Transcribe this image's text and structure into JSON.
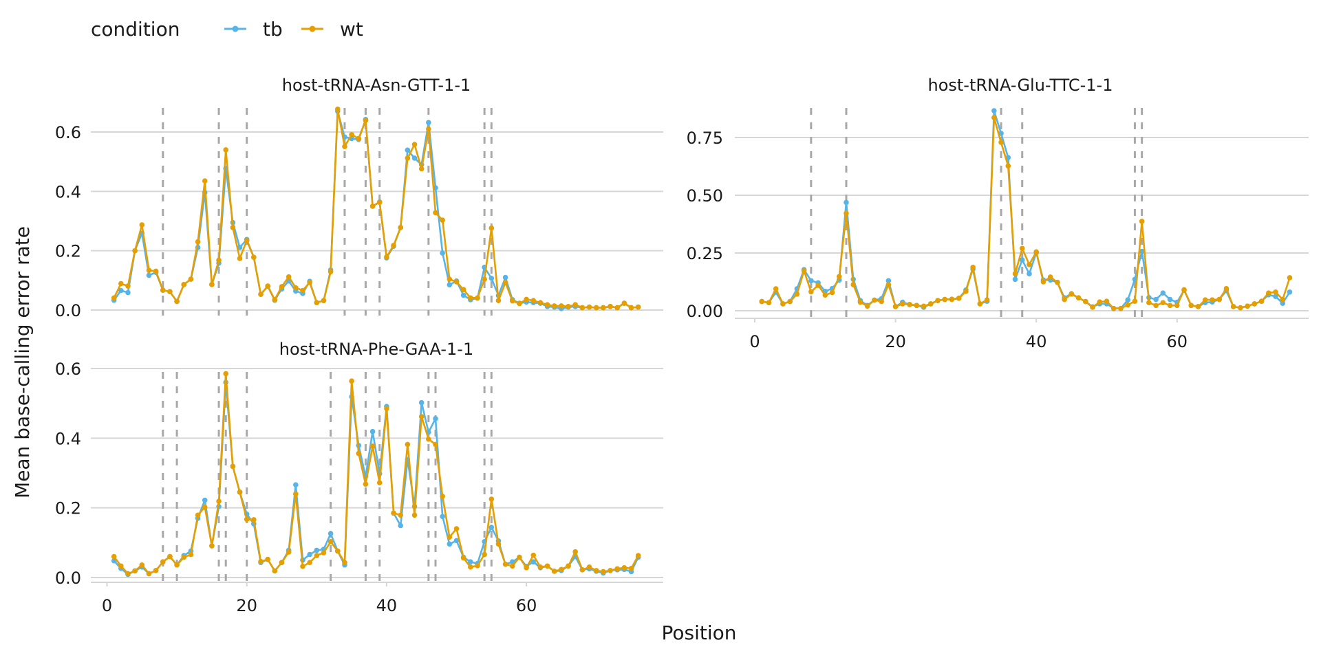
{
  "legend": {
    "title": "condition",
    "items": [
      {
        "label": "tb",
        "color": "#56B4E9"
      },
      {
        "label": "wt",
        "color": "#E69F00"
      }
    ]
  },
  "chart_data": {
    "type": "line",
    "xlabel": "Position",
    "ylabel": "Mean base-calling error rate",
    "legend_position": "top-left",
    "grid": "horizontal major",
    "x": [
      1,
      2,
      3,
      4,
      5,
      6,
      7,
      8,
      9,
      10,
      11,
      12,
      13,
      14,
      15,
      16,
      17,
      18,
      19,
      20,
      21,
      22,
      23,
      24,
      25,
      26,
      27,
      28,
      29,
      30,
      31,
      32,
      33,
      34,
      35,
      36,
      37,
      38,
      39,
      40,
      41,
      42,
      43,
      44,
      45,
      46,
      47,
      48,
      49,
      50,
      51,
      52,
      53,
      54,
      55,
      56,
      57,
      58,
      59,
      60,
      61,
      62,
      63,
      64,
      65,
      66,
      67,
      68,
      69,
      70,
      71,
      72,
      73,
      74,
      75,
      76
    ],
    "facets": [
      {
        "title": "host-tRNA-Asn-GTT-1-1",
        "yticks": [
          "0.0",
          "0.2",
          "0.4",
          "0.6"
        ],
        "ytick_values": [
          0,
          0.2,
          0.4,
          0.6
        ],
        "xticks": [],
        "vlines": [
          8,
          16,
          20,
          34,
          37,
          39,
          46,
          54,
          55
        ],
        "series": [
          {
            "name": "tb",
            "values": [
              0.033,
              0.066,
              0.059,
              0.2,
              0.259,
              0.117,
              0.127,
              0.067,
              0.062,
              0.029,
              0.086,
              0.104,
              0.211,
              0.396,
              0.086,
              0.158,
              0.477,
              0.295,
              0.211,
              0.238,
              0.178,
              0.053,
              0.08,
              0.033,
              0.071,
              0.098,
              0.064,
              0.056,
              0.097,
              0.025,
              0.032,
              0.135,
              0.67,
              0.583,
              0.578,
              0.575,
              0.642,
              0.35,
              0.364,
              0.176,
              0.215,
              0.278,
              0.539,
              0.512,
              0.49,
              0.632,
              0.412,
              0.192,
              0.085,
              0.098,
              0.05,
              0.035,
              0.04,
              0.144,
              0.107,
              0.049,
              0.11,
              0.035,
              0.023,
              0.027,
              0.025,
              0.023,
              0.012,
              0.01,
              0.005,
              0.01,
              0.012,
              0.008,
              0.01,
              0.008,
              0.008,
              0.012,
              0.008,
              0.023,
              0.008,
              0.01
            ]
          },
          {
            "name": "wt",
            "values": [
              0.041,
              0.089,
              0.081,
              0.2,
              0.287,
              0.134,
              0.131,
              0.067,
              0.062,
              0.029,
              0.086,
              0.104,
              0.23,
              0.435,
              0.086,
              0.168,
              0.54,
              0.278,
              0.174,
              0.234,
              0.178,
              0.053,
              0.081,
              0.035,
              0.079,
              0.112,
              0.075,
              0.066,
              0.093,
              0.025,
              0.032,
              0.129,
              0.677,
              0.551,
              0.591,
              0.578,
              0.639,
              0.35,
              0.363,
              0.179,
              0.218,
              0.278,
              0.512,
              0.558,
              0.476,
              0.61,
              0.328,
              0.303,
              0.104,
              0.095,
              0.069,
              0.041,
              0.041,
              0.104,
              0.276,
              0.032,
              0.093,
              0.031,
              0.022,
              0.036,
              0.032,
              0.025,
              0.018,
              0.014,
              0.014,
              0.012,
              0.018,
              0.008,
              0.01,
              0.008,
              0.008,
              0.012,
              0.008,
              0.023,
              0.008,
              0.01
            ]
          }
        ]
      },
      {
        "title": "host-tRNA-Glu-TTC-1-1",
        "yticks": [
          "0.00",
          "0.25",
          "0.50",
          "0.75"
        ],
        "ytick_values": [
          0,
          0.25,
          0.5,
          0.75
        ],
        "xticks": [
          "0",
          "20",
          "40",
          "60"
        ],
        "xtick_values": [
          0,
          20,
          40,
          60
        ],
        "vlines": [
          8,
          13,
          35,
          38,
          54,
          55
        ],
        "series": [
          {
            "name": "tb",
            "values": [
              0.04,
              0.035,
              0.08,
              0.03,
              0.04,
              0.095,
              0.178,
              0.13,
              0.121,
              0.084,
              0.096,
              0.133,
              0.469,
              0.136,
              0.044,
              0.023,
              0.046,
              0.052,
              0.13,
              0.018,
              0.037,
              0.027,
              0.023,
              0.015,
              0.03,
              0.044,
              0.049,
              0.05,
              0.054,
              0.09,
              0.18,
              0.03,
              0.041,
              0.866,
              0.768,
              0.663,
              0.136,
              0.22,
              0.16,
              0.252,
              0.133,
              0.133,
              0.123,
              0.056,
              0.074,
              0.056,
              0.04,
              0.017,
              0.03,
              0.03,
              0.01,
              0.01,
              0.047,
              0.136,
              0.257,
              0.057,
              0.049,
              0.077,
              0.049,
              0.037,
              0.089,
              0.023,
              0.018,
              0.035,
              0.038,
              0.049,
              0.087,
              0.018,
              0.013,
              0.02,
              0.03,
              0.041,
              0.069,
              0.062,
              0.032,
              0.081
            ]
          },
          {
            "name": "wt",
            "values": [
              0.04,
              0.035,
              0.095,
              0.03,
              0.04,
              0.072,
              0.173,
              0.082,
              0.11,
              0.068,
              0.079,
              0.148,
              0.422,
              0.113,
              0.037,
              0.02,
              0.046,
              0.04,
              0.113,
              0.018,
              0.03,
              0.027,
              0.023,
              0.02,
              0.03,
              0.044,
              0.049,
              0.049,
              0.054,
              0.084,
              0.188,
              0.03,
              0.047,
              0.836,
              0.729,
              0.627,
              0.16,
              0.27,
              0.2,
              0.255,
              0.125,
              0.146,
              0.123,
              0.049,
              0.072,
              0.056,
              0.04,
              0.015,
              0.038,
              0.041,
              0.01,
              0.01,
              0.025,
              0.041,
              0.387,
              0.035,
              0.023,
              0.035,
              0.023,
              0.023,
              0.091,
              0.023,
              0.018,
              0.047,
              0.047,
              0.049,
              0.096,
              0.018,
              0.013,
              0.02,
              0.03,
              0.041,
              0.077,
              0.081,
              0.049,
              0.143
            ]
          }
        ]
      },
      {
        "title": "host-tRNA-Phe-GAA-1-1",
        "yticks": [
          "0.0",
          "0.2",
          "0.4",
          "0.6"
        ],
        "ytick_values": [
          0,
          0.2,
          0.4,
          0.6
        ],
        "xticks": [
          "0",
          "20",
          "40",
          "60"
        ],
        "xtick_values": [
          0,
          20,
          40,
          60
        ],
        "vlines": [
          8,
          10,
          16,
          17,
          20,
          32,
          37,
          39,
          46,
          47,
          54,
          55
        ],
        "series": [
          {
            "name": "tb",
            "values": [
              0.048,
              0.026,
              0.009,
              0.019,
              0.03,
              0.011,
              0.02,
              0.045,
              0.06,
              0.036,
              0.063,
              0.076,
              0.17,
              0.222,
              0.091,
              0.204,
              0.56,
              0.319,
              0.245,
              0.182,
              0.154,
              0.043,
              0.052,
              0.019,
              0.043,
              0.078,
              0.266,
              0.05,
              0.066,
              0.078,
              0.081,
              0.126,
              0.076,
              0.036,
              0.519,
              0.379,
              0.29,
              0.419,
              0.298,
              0.491,
              0.185,
              0.149,
              0.339,
              0.204,
              0.502,
              0.417,
              0.456,
              0.175,
              0.096,
              0.106,
              0.058,
              0.045,
              0.04,
              0.103,
              0.144,
              0.105,
              0.038,
              0.045,
              0.058,
              0.032,
              0.045,
              0.028,
              0.033,
              0.018,
              0.02,
              0.033,
              0.06,
              0.022,
              0.025,
              0.018,
              0.013,
              0.02,
              0.022,
              0.023,
              0.017,
              0.058
            ]
          },
          {
            "name": "wt",
            "values": [
              0.06,
              0.033,
              0.011,
              0.019,
              0.036,
              0.011,
              0.02,
              0.045,
              0.06,
              0.036,
              0.058,
              0.066,
              0.179,
              0.202,
              0.091,
              0.219,
              0.585,
              0.319,
              0.245,
              0.167,
              0.166,
              0.046,
              0.052,
              0.019,
              0.043,
              0.073,
              0.24,
              0.032,
              0.043,
              0.063,
              0.071,
              0.103,
              0.076,
              0.043,
              0.564,
              0.356,
              0.268,
              0.377,
              0.272,
              0.485,
              0.185,
              0.179,
              0.382,
              0.179,
              0.462,
              0.397,
              0.382,
              0.233,
              0.116,
              0.14,
              0.056,
              0.03,
              0.034,
              0.066,
              0.225,
              0.096,
              0.038,
              0.033,
              0.058,
              0.028,
              0.064,
              0.03,
              0.033,
              0.018,
              0.023,
              0.033,
              0.074,
              0.022,
              0.03,
              0.02,
              0.017,
              0.02,
              0.025,
              0.028,
              0.026,
              0.063
            ]
          }
        ]
      }
    ]
  }
}
